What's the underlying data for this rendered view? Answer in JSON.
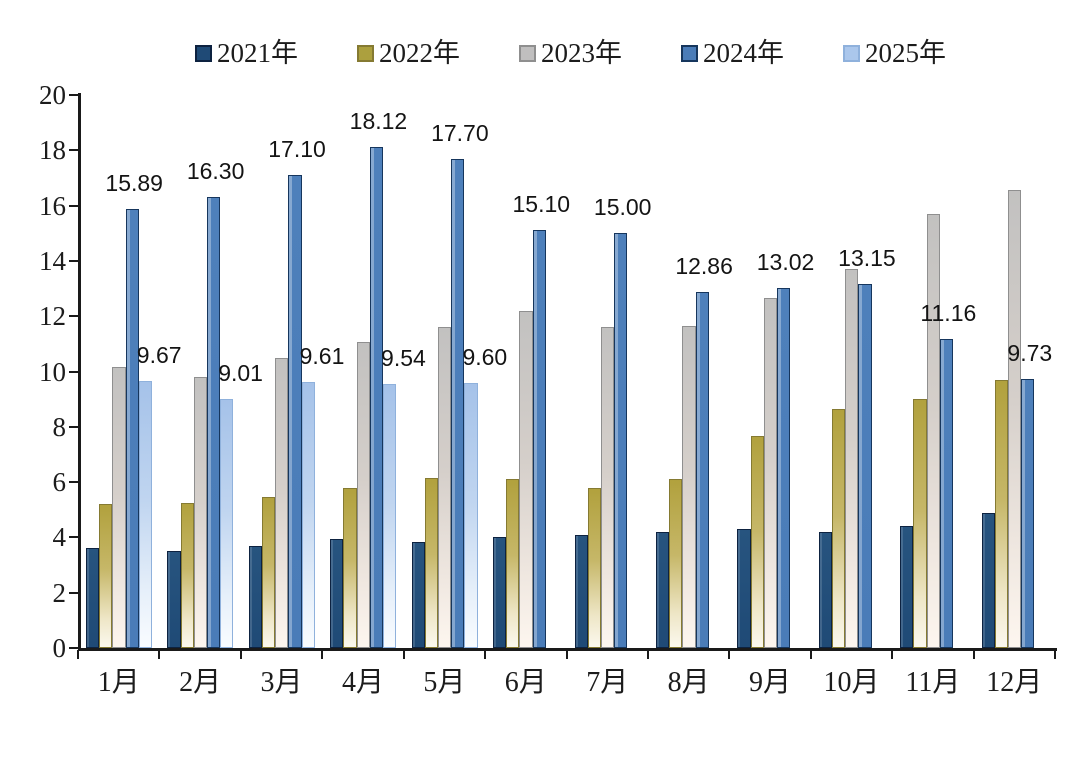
{
  "chart_data": {
    "type": "bar",
    "title": "",
    "xlabel": "",
    "ylabel": "",
    "ylim": [
      0,
      20
    ],
    "ytick_step": 2,
    "grid": false,
    "legend_position": "top",
    "categories": [
      "1月",
      "2月",
      "3月",
      "4月",
      "5月",
      "6月",
      "7月",
      "8月",
      "9月",
      "10月",
      "11月",
      "12月"
    ],
    "series": [
      {
        "name": "2021年",
        "color": "#1f4a76",
        "border": "#0d2240",
        "values": [
          3.6,
          3.5,
          3.7,
          3.95,
          3.85,
          4.0,
          4.1,
          4.2,
          4.3,
          4.2,
          4.4,
          4.9
        ],
        "data_labels": [],
        "label_anchor": "center"
      },
      {
        "name": "2022年",
        "color": "#aca03e",
        "border": "#857a32",
        "values": [
          5.2,
          5.25,
          5.45,
          5.8,
          6.15,
          6.1,
          5.8,
          6.1,
          7.65,
          8.65,
          9.0,
          9.7
        ],
        "data_labels": [],
        "label_anchor": "center"
      },
      {
        "name": "2023年",
        "color": "#c0bfbf",
        "border": "#8f8f8f",
        "values": [
          10.15,
          9.8,
          10.5,
          11.05,
          11.6,
          12.2,
          11.6,
          11.65,
          12.65,
          13.7,
          15.7,
          16.55
        ],
        "data_labels": [],
        "label_anchor": "center"
      },
      {
        "name": "2024年",
        "color": "#4a7cb8",
        "border": "#16365d",
        "values": [
          15.89,
          16.3,
          17.1,
          18.12,
          17.7,
          15.1,
          15.0,
          12.86,
          13.02,
          13.15,
          11.16,
          9.73
        ],
        "data_labels": [
          "15.89",
          "16.30",
          "17.10",
          "18.12",
          "17.70",
          "15.10",
          "15.00",
          "12.86",
          "13.02",
          "13.15",
          "11.16",
          "9.73"
        ],
        "label_anchor": "center"
      },
      {
        "name": "2025年",
        "color": "#abc7ec",
        "border": "#8fb1dc",
        "values": [
          9.67,
          9.01,
          9.61,
          9.54,
          9.6,
          null,
          null,
          null,
          null,
          null,
          null,
          null
        ],
        "data_labels": [
          "9.67",
          "9.01",
          "9.61",
          "9.54",
          "9.60"
        ],
        "label_anchor": "left"
      }
    ]
  }
}
